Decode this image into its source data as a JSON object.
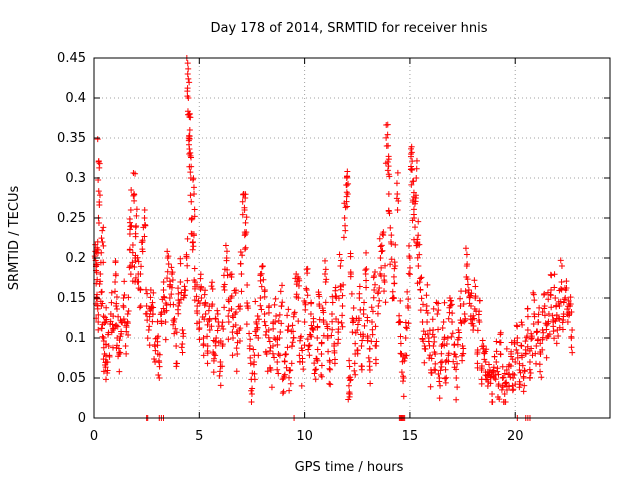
{
  "chart_data": {
    "type": "scatter",
    "title": "Day 178 of 2014, SRMTID for receiver hnis",
    "xlabel": "GPS time / hours",
    "ylabel": "SRMTID / TECUs",
    "xlim": [
      0,
      24.5
    ],
    "ylim": [
      0,
      0.45
    ],
    "x_ticks": [
      0,
      5,
      10,
      15,
      20
    ],
    "x_tick_labels": [
      "0",
      "5",
      "10",
      "15",
      "20"
    ],
    "y_ticks": [
      0,
      0.05,
      0.1,
      0.15,
      0.2,
      0.25,
      0.3,
      0.35,
      0.4,
      0.45
    ],
    "y_tick_labels": [
      "0",
      "0.05",
      "0.1",
      "0.15",
      "0.2",
      "0.25",
      "0.3",
      "0.35",
      "0.4",
      "0.45"
    ],
    "grid": true,
    "marker": "plus",
    "series_color": "#ff0000",
    "series": [
      {
        "name": "SRMTID",
        "points": [
          [
            0.05,
            0.2
          ],
          [
            0.1,
            0.19
          ],
          [
            0.12,
            0.15
          ],
          [
            0.15,
            0.21
          ],
          [
            0.2,
            0.12
          ],
          [
            0.22,
            0.32
          ],
          [
            0.25,
            0.27
          ],
          [
            0.3,
            0.18
          ],
          [
            0.35,
            0.14
          ],
          [
            0.4,
            0.22
          ],
          [
            0.45,
            0.1
          ],
          [
            0.5,
            0.08
          ],
          [
            0.55,
            0.12
          ],
          [
            0.6,
            0.07
          ],
          [
            0.7,
            0.09
          ],
          [
            0.8,
            0.13
          ],
          [
            0.9,
            0.11
          ],
          [
            1.0,
            0.17
          ],
          [
            1.05,
            0.14
          ],
          [
            1.1,
            0.1
          ],
          [
            1.2,
            0.08
          ],
          [
            1.3,
            0.12
          ],
          [
            1.4,
            0.15
          ],
          [
            1.5,
            0.09
          ],
          [
            1.6,
            0.13
          ],
          [
            1.7,
            0.21
          ],
          [
            1.75,
            0.26
          ],
          [
            1.8,
            0.19
          ],
          [
            1.9,
            0.28
          ],
          [
            1.95,
            0.2
          ],
          [
            2.0,
            0.24
          ],
          [
            2.1,
            0.18
          ],
          [
            2.2,
            0.16
          ],
          [
            2.3,
            0.22
          ],
          [
            2.4,
            0.25
          ],
          [
            2.5,
            0.14
          ],
          [
            2.6,
            0.11
          ],
          [
            2.7,
            0.16
          ],
          [
            2.8,
            0.13
          ],
          [
            2.9,
            0.07
          ],
          [
            3.0,
            0.1
          ],
          [
            3.1,
            0.05
          ],
          [
            3.2,
            0.13
          ],
          [
            3.3,
            0.16
          ],
          [
            3.4,
            0.12
          ],
          [
            3.5,
            0.2
          ],
          [
            3.6,
            0.15
          ],
          [
            3.7,
            0.18
          ],
          [
            3.8,
            0.12
          ],
          [
            3.9,
            0.09
          ],
          [
            4.0,
            0.14
          ],
          [
            4.1,
            0.17
          ],
          [
            4.2,
            0.11
          ],
          [
            4.3,
            0.16
          ],
          [
            4.4,
            0.2
          ],
          [
            4.45,
            0.43
          ],
          [
            4.48,
            0.4
          ],
          [
            4.5,
            0.35
          ],
          [
            4.52,
            0.33
          ],
          [
            4.55,
            0.36
          ],
          [
            4.6,
            0.3
          ],
          [
            4.65,
            0.25
          ],
          [
            4.7,
            0.22
          ],
          [
            4.75,
            0.28
          ],
          [
            4.8,
            0.17
          ],
          [
            4.9,
            0.14
          ],
          [
            5.0,
            0.12
          ],
          [
            5.1,
            0.15
          ],
          [
            5.2,
            0.1
          ],
          [
            5.3,
            0.13
          ],
          [
            5.4,
            0.09
          ],
          [
            5.5,
            0.11
          ],
          [
            5.6,
            0.14
          ],
          [
            5.7,
            0.08
          ],
          [
            5.8,
            0.1
          ],
          [
            5.9,
            0.12
          ],
          [
            6.0,
            0.07
          ],
          [
            6.1,
            0.09
          ],
          [
            6.2,
            0.16
          ],
          [
            6.3,
            0.2
          ],
          [
            6.4,
            0.12
          ],
          [
            6.5,
            0.15
          ],
          [
            6.6,
            0.1
          ],
          [
            6.7,
            0.13
          ],
          [
            6.8,
            0.08
          ],
          [
            6.9,
            0.11
          ],
          [
            7.0,
            0.18
          ],
          [
            7.1,
            0.28
          ],
          [
            7.15,
            0.26
          ],
          [
            7.2,
            0.23
          ],
          [
            7.3,
            0.14
          ],
          [
            7.4,
            0.09
          ],
          [
            7.5,
            0.03
          ],
          [
            7.6,
            0.07
          ],
          [
            7.7,
            0.12
          ],
          [
            7.8,
            0.1
          ],
          [
            7.9,
            0.15
          ],
          [
            8.0,
            0.19
          ],
          [
            8.1,
            0.13
          ],
          [
            8.2,
            0.08
          ],
          [
            8.3,
            0.11
          ],
          [
            8.4,
            0.06
          ],
          [
            8.5,
            0.09
          ],
          [
            8.6,
            0.12
          ],
          [
            8.7,
            0.07
          ],
          [
            8.8,
            0.1
          ],
          [
            8.9,
            0.14
          ],
          [
            9.0,
            0.05
          ],
          [
            9.1,
            0.08
          ],
          [
            9.2,
            0.11
          ],
          [
            9.3,
            0.06
          ],
          [
            9.4,
            0.09
          ],
          [
            9.5,
            0.13
          ],
          [
            9.6,
            0.18
          ],
          [
            9.7,
            0.15
          ],
          [
            9.8,
            0.1
          ],
          [
            9.9,
            0.07
          ],
          [
            10.0,
            0.12
          ],
          [
            10.1,
            0.16
          ],
          [
            10.2,
            0.09
          ],
          [
            10.3,
            0.13
          ],
          [
            10.4,
            0.11
          ],
          [
            10.5,
            0.06
          ],
          [
            10.6,
            0.1
          ],
          [
            10.7,
            0.14
          ],
          [
            10.8,
            0.08
          ],
          [
            10.9,
            0.12
          ],
          [
            11.0,
            0.17
          ],
          [
            11.1,
            0.1
          ],
          [
            11.2,
            0.07
          ],
          [
            11.3,
            0.13
          ],
          [
            11.4,
            0.09
          ],
          [
            11.5,
            0.15
          ],
          [
            11.6,
            0.12
          ],
          [
            11.7,
            0.19
          ],
          [
            11.8,
            0.14
          ],
          [
            11.9,
            0.25
          ],
          [
            12.0,
            0.3
          ],
          [
            12.05,
            0.28
          ],
          [
            12.1,
            0.05
          ],
          [
            12.15,
            0.03
          ],
          [
            12.2,
            0.18
          ],
          [
            12.3,
            0.12
          ],
          [
            12.4,
            0.08
          ],
          [
            12.5,
            0.11
          ],
          [
            12.6,
            0.15
          ],
          [
            12.7,
            0.09
          ],
          [
            12.8,
            0.13
          ],
          [
            12.9,
            0.18
          ],
          [
            13.0,
            0.1
          ],
          [
            13.1,
            0.06
          ],
          [
            13.2,
            0.12
          ],
          [
            13.3,
            0.16
          ],
          [
            13.4,
            0.09
          ],
          [
            13.5,
            0.14
          ],
          [
            13.6,
            0.2
          ],
          [
            13.7,
            0.23
          ],
          [
            13.8,
            0.17
          ],
          [
            13.9,
            0.34
          ],
          [
            13.95,
            0.32
          ],
          [
            14.0,
            0.28
          ],
          [
            14.1,
            0.22
          ],
          [
            14.2,
            0.15
          ],
          [
            14.3,
            0.19
          ],
          [
            14.4,
            0.28
          ],
          [
            14.5,
            0.12
          ],
          [
            14.6,
            0.08
          ],
          [
            14.7,
            0.05
          ],
          [
            14.8,
            0.1
          ],
          [
            14.9,
            0.14
          ],
          [
            15.0,
            0.2
          ],
          [
            15.05,
            0.33
          ],
          [
            15.1,
            0.31
          ],
          [
            15.15,
            0.27
          ],
          [
            15.2,
            0.25
          ],
          [
            15.3,
            0.3
          ],
          [
            15.35,
            0.22
          ],
          [
            15.4,
            0.19
          ],
          [
            15.5,
            0.16
          ],
          [
            15.6,
            0.12
          ],
          [
            15.7,
            0.09
          ],
          [
            15.8,
            0.14
          ],
          [
            15.9,
            0.1
          ],
          [
            16.0,
            0.06
          ],
          [
            16.1,
            0.11
          ],
          [
            16.2,
            0.08
          ],
          [
            16.3,
            0.13
          ],
          [
            16.4,
            0.05
          ],
          [
            16.5,
            0.09
          ],
          [
            16.6,
            0.12
          ],
          [
            16.7,
            0.07
          ],
          [
            16.8,
            0.1
          ],
          [
            16.9,
            0.15
          ],
          [
            17.0,
            0.12
          ],
          [
            17.1,
            0.08
          ],
          [
            17.2,
            0.05
          ],
          [
            17.3,
            0.11
          ],
          [
            17.4,
            0.14
          ],
          [
            17.5,
            0.09
          ],
          [
            17.6,
            0.13
          ],
          [
            17.7,
            0.19
          ],
          [
            17.8,
            0.16
          ],
          [
            17.9,
            0.14
          ],
          [
            18.0,
            0.11
          ],
          [
            18.1,
            0.15
          ],
          [
            18.2,
            0.08
          ],
          [
            18.3,
            0.12
          ],
          [
            18.4,
            0.06
          ],
          [
            18.5,
            0.09
          ],
          [
            18.6,
            0.07
          ],
          [
            18.7,
            0.04
          ],
          [
            18.8,
            0.06
          ],
          [
            18.9,
            0.03
          ],
          [
            19.0,
            0.05
          ],
          [
            19.1,
            0.07
          ],
          [
            19.2,
            0.04
          ],
          [
            19.3,
            0.08
          ],
          [
            19.4,
            0.05
          ],
          [
            19.5,
            0.03
          ],
          [
            19.6,
            0.06
          ],
          [
            19.7,
            0.04
          ],
          [
            19.8,
            0.08
          ],
          [
            19.9,
            0.05
          ],
          [
            20.0,
            0.07
          ],
          [
            20.1,
            0.1
          ],
          [
            20.2,
            0.06
          ],
          [
            20.3,
            0.09
          ],
          [
            20.4,
            0.05
          ],
          [
            20.5,
            0.08
          ],
          [
            20.6,
            0.11
          ],
          [
            20.7,
            0.07
          ],
          [
            20.8,
            0.1
          ],
          [
            20.9,
            0.13
          ],
          [
            21.0,
            0.09
          ],
          [
            21.1,
            0.12
          ],
          [
            21.2,
            0.08
          ],
          [
            21.3,
            0.11
          ],
          [
            21.4,
            0.14
          ],
          [
            21.5,
            0.1
          ],
          [
            21.6,
            0.13
          ],
          [
            21.7,
            0.16
          ],
          [
            21.8,
            0.12
          ],
          [
            21.9,
            0.15
          ],
          [
            22.0,
            0.11
          ],
          [
            22.1,
            0.14
          ],
          [
            22.2,
            0.17
          ],
          [
            22.3,
            0.13
          ],
          [
            22.4,
            0.16
          ],
          [
            22.5,
            0.12
          ],
          [
            22.6,
            0.14
          ],
          [
            22.7,
            0.11
          ]
        ],
        "zero_points": [
          2.5,
          2.55,
          3.1,
          3.2,
          3.3,
          9.5,
          14.5,
          14.55,
          14.6,
          14.65,
          14.7,
          14.75,
          20.1,
          20.5,
          20.6,
          20.7
        ]
      }
    ]
  }
}
